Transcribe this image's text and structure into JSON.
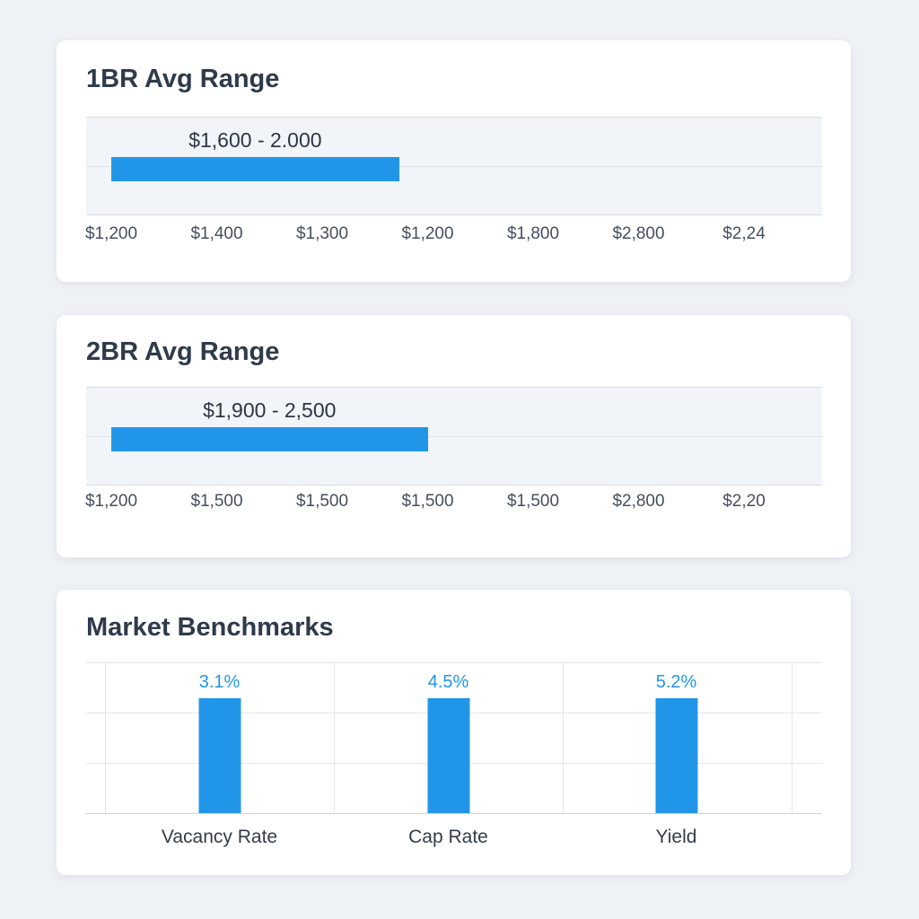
{
  "chart_data": [
    {
      "type": "bar",
      "orientation": "horizontal-range",
      "title": "1BR Avg Range",
      "range_label": "$1,600 - 2.000",
      "range": [
        1600,
        2000
      ],
      "bar_span_ticks": [
        0,
        2.73
      ],
      "tick_labels": [
        "$1,200",
        "$1,400",
        "$1,300",
        "$1,200",
        "$1,800",
        "$2,800",
        "$2,24"
      ],
      "grid": true
    },
    {
      "type": "bar",
      "orientation": "horizontal-range",
      "title": "2BR Avg Range",
      "range_label": "$1,900 - 2,500",
      "range": [
        1900,
        2500
      ],
      "bar_span_ticks": [
        0,
        3.0
      ],
      "tick_labels": [
        "$1,200",
        "$1,500",
        "$1,500",
        "$1,500",
        "$1,500",
        "$2,800",
        "$2,20"
      ],
      "grid": true
    },
    {
      "type": "bar",
      "title": "Market Benchmarks",
      "categories": [
        "Vacancy Rate",
        "Cap Rate",
        "Yield"
      ],
      "values": [
        3.1,
        4.5,
        5.2
      ],
      "value_labels": [
        "3.1%",
        "4.5%",
        "5.2%"
      ],
      "grid": true
    }
  ],
  "colors": {
    "bar": "#2196e9",
    "value_text": "#2196e9",
    "title_text": "#2f3a4b"
  }
}
